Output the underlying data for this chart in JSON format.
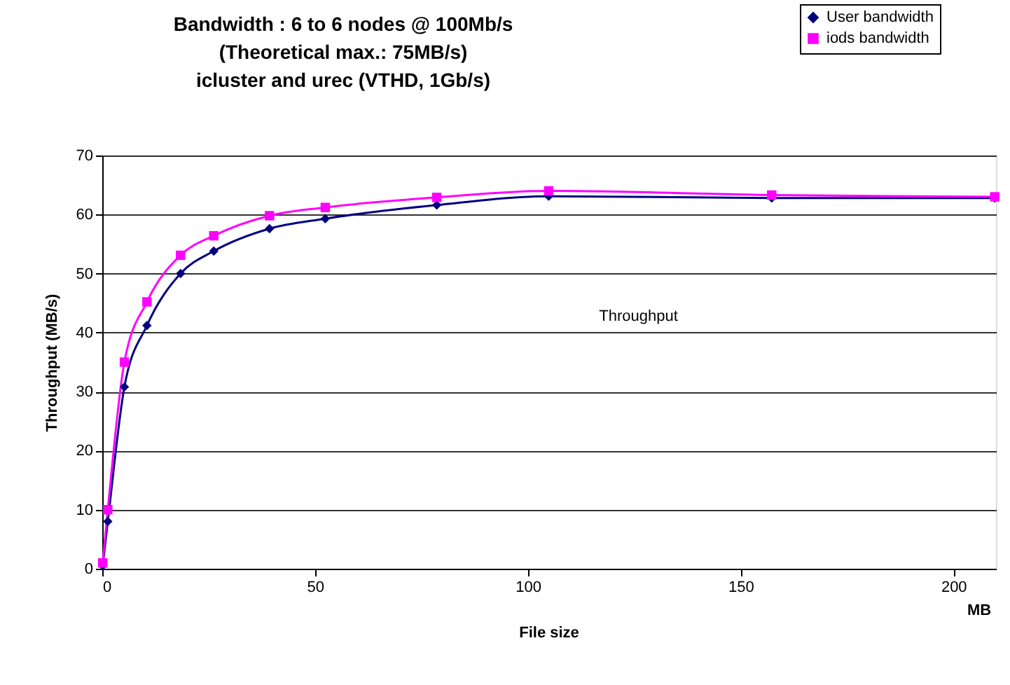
{
  "chart_data": {
    "type": "line",
    "title": "Bandwidth : 6 to 6 nodes @ 100Mb/s\n(Theoretical max.: 75MB/s)\nicluster and urec (VTHD, 1Gb/s)",
    "xlabel": "File size",
    "ylabel": "Throughput (MB/s)",
    "x": [
      0.1,
      1.3,
      5.2,
      10.5,
      18.4,
      26.2,
      39.3,
      52.4,
      78.6,
      104.9,
      157.3,
      209.7
    ],
    "series": [
      {
        "name": "User bandwidth",
        "color": "#000080",
        "marker": "diamond",
        "values": [
          0.5,
          8,
          30.8,
          41.2,
          50,
          53.8,
          57.6,
          59.3,
          61.6,
          63.1,
          62.8,
          62.8
        ]
      },
      {
        "name": "iods bandwidth",
        "color": "#ff00ff",
        "marker": "square",
        "values": [
          1,
          10,
          35,
          45.2,
          53.1,
          56.4,
          59.8,
          61.2,
          62.9,
          64,
          63.3,
          63
        ]
      }
    ],
    "xlim": [
      0,
      210
    ],
    "xticks": [
      0,
      50,
      100,
      150,
      200
    ],
    "ylim": [
      0,
      70
    ],
    "yticks": [
      0,
      10,
      20,
      30,
      40,
      50,
      60,
      70
    ],
    "grid": "y",
    "legend": "top right",
    "line_style": "solid",
    "annotations": [
      "Throughput",
      "MB"
    ]
  }
}
